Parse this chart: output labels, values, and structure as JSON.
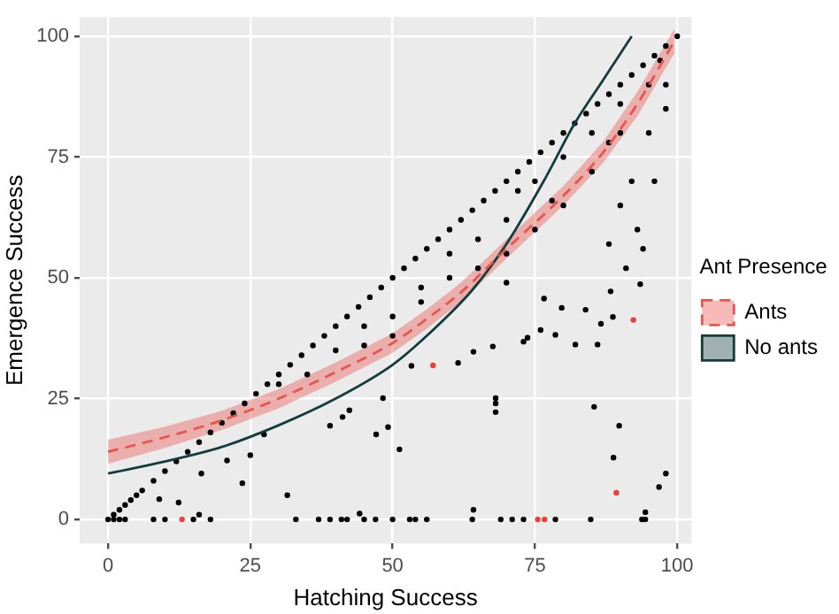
{
  "chart_data": {
    "type": "scatter",
    "xlabel": "Hatching Success",
    "ylabel": "Emergence Success",
    "legend_title": "Ant Presence",
    "xlim": [
      -5,
      102.5
    ],
    "ylim": [
      -5,
      104
    ],
    "xticks": [
      0,
      25,
      50,
      75,
      100
    ],
    "yticks": [
      0,
      25,
      50,
      75,
      100
    ],
    "grid": true,
    "legend": "right",
    "marker": "circle",
    "series": [
      {
        "color": "#000000",
        "x": [
          0,
          1,
          2,
          3,
          4,
          5,
          6,
          8,
          10,
          12,
          14,
          16,
          18,
          20,
          22,
          24,
          26,
          28,
          30,
          32,
          34,
          36,
          38,
          40,
          42,
          44,
          46,
          48,
          50,
          52,
          54,
          56,
          58,
          60,
          62,
          64,
          66,
          68,
          70,
          72,
          74,
          76,
          78,
          80,
          82,
          84,
          86,
          88,
          90,
          92,
          94,
          96,
          98,
          100,
          1,
          2,
          3,
          8,
          10,
          15,
          18,
          33,
          37,
          39,
          41,
          42,
          45,
          47,
          50,
          53,
          54,
          56,
          64,
          69,
          71,
          73,
          78.6,
          84.8,
          93.8,
          94.4,
          64.2,
          68.1,
          68.1,
          68.1,
          85.4,
          89.8,
          88.8,
          98,
          96.8,
          94.4,
          61.5,
          64.2,
          67.6,
          73,
          73.7,
          76,
          78.6,
          82.1,
          86,
          79.7,
          83.9,
          86.6,
          88.7,
          88.3,
          93.5,
          76.6,
          20.9,
          25,
          23.6,
          12.4,
          16,
          9,
          16.4,
          27.4,
          39,
          41.2,
          42.4,
          48.3,
          47.1,
          49.2,
          51.2,
          31.5,
          44.2,
          53.3,
          40,
          45,
          50,
          55,
          60,
          65,
          70,
          72,
          75,
          80,
          85,
          90,
          95,
          97,
          60,
          70,
          80,
          90,
          92,
          95,
          98,
          98,
          85,
          88,
          75,
          78,
          30,
          35,
          45,
          50,
          55,
          65,
          70,
          90,
          93,
          96,
          88,
          94,
          91
        ],
        "values": [
          0,
          1,
          2,
          3,
          4,
          5,
          6,
          8,
          10,
          12,
          14,
          16,
          18,
          20,
          22,
          24,
          26,
          28,
          30,
          32,
          34,
          36,
          38,
          40,
          42,
          44,
          46,
          48,
          50,
          52,
          54,
          56,
          58,
          60,
          62,
          64,
          66,
          68,
          70,
          72,
          74,
          76,
          78,
          80,
          82,
          84,
          86,
          88,
          90,
          92,
          94,
          96,
          98,
          100,
          0,
          0,
          0,
          0,
          0,
          0,
          0,
          0,
          0,
          0,
          0,
          0,
          0,
          0,
          0,
          0,
          0,
          0,
          0,
          0,
          0,
          0,
          0,
          0,
          0,
          0,
          2,
          25.1,
          24,
          22.2,
          23.3,
          19.4,
          12.8,
          9.5,
          6.7,
          1.5,
          32.4,
          34.7,
          35.8,
          36.8,
          37.6,
          39.2,
          38.2,
          36.2,
          36.2,
          43.8,
          43.4,
          40.5,
          41.9,
          47.2,
          48.7,
          45.7,
          12.2,
          13.3,
          7.5,
          3.5,
          1,
          4.2,
          9.5,
          17.6,
          19.4,
          21.2,
          22.6,
          25.1,
          17.6,
          19.1,
          14.5,
          5,
          1.2,
          31.8,
          35,
          40,
          42,
          48,
          55,
          58,
          62,
          68,
          70,
          75,
          80,
          86,
          90,
          95,
          50,
          55,
          65,
          80,
          70,
          80,
          85,
          90,
          72,
          78,
          60,
          66,
          28,
          30,
          36,
          38,
          45,
          52,
          49,
          65,
          60,
          70,
          57,
          56,
          52
        ]
      },
      {
        "color": "#e8413a",
        "x": [
          57.1,
          75.5,
          76.7,
          89.3,
          92.3,
          13
        ],
        "values": [
          31.9,
          0,
          0,
          5.5,
          41.3,
          0
        ]
      },
      {
        "type": "line",
        "name": "Ants",
        "color": "#e8554e",
        "line_style": "dashed",
        "marker": "none",
        "x": [
          0,
          10,
          20,
          30,
          40,
          50,
          56,
          62,
          70,
          80,
          87,
          93,
          99.5
        ],
        "values": [
          14,
          17,
          20.5,
          25,
          30.5,
          36.5,
          41.5,
          47,
          56,
          67,
          76,
          86,
          99
        ],
        "lower": [
          11.5,
          14.8,
          18.5,
          23,
          28.5,
          34.5,
          39.5,
          45,
          54,
          65,
          73.8,
          83.5,
          96.5
        ],
        "upper": [
          16.5,
          19.2,
          22.5,
          27,
          32.5,
          38.5,
          43.5,
          49,
          58,
          69,
          78.2,
          88.5,
          101.5
        ]
      },
      {
        "type": "line",
        "name": "No ants",
        "color": "#143c3c",
        "marker": "none",
        "x": [
          0,
          10,
          20,
          30,
          40,
          50,
          56,
          64,
          70,
          77,
          82,
          87,
          92
        ],
        "values": [
          9.5,
          12,
          15,
          19.5,
          25,
          32,
          38,
          47.5,
          57,
          71,
          82,
          91,
          100
        ]
      }
    ]
  }
}
